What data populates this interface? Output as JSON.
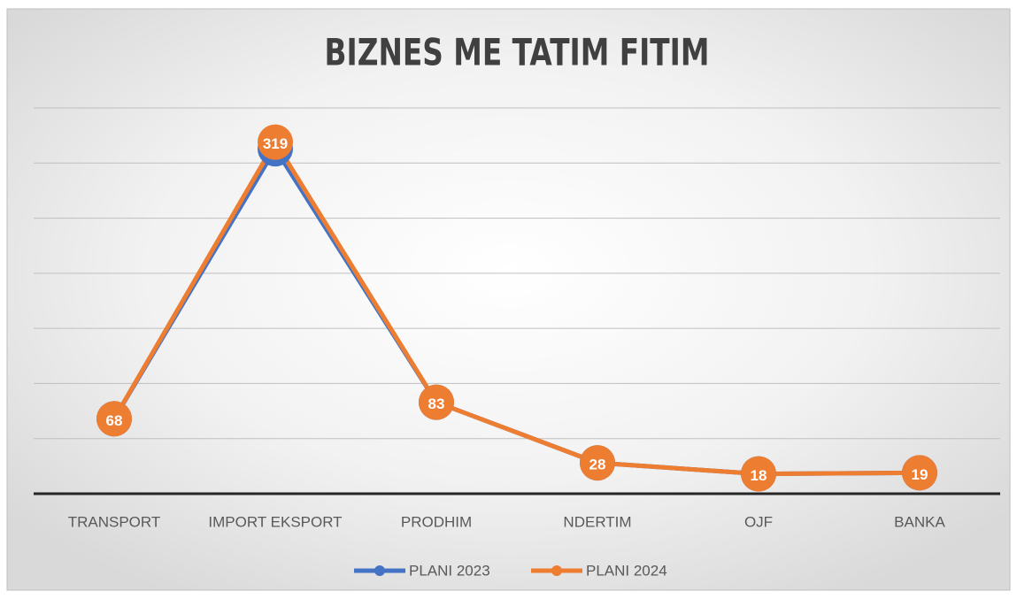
{
  "chart_data": {
    "type": "line",
    "title": "BIZNES ME TATIM FITIM",
    "categories": [
      "TRANSPORT",
      "IMPORT EKSPORT",
      "PRODHIM",
      "NDERTIM",
      "OJF",
      "BANKA"
    ],
    "series": [
      {
        "name": "PLANI 2023",
        "color": "#4472c4",
        "values": [
          68,
          313,
          83,
          28,
          18,
          19
        ]
      },
      {
        "name": "PLANI 2024",
        "color": "#ed7d31",
        "values": [
          68,
          319,
          83,
          28,
          18,
          19
        ]
      }
    ],
    "ylim": [
      0,
      350
    ],
    "yticks": [
      0,
      50,
      100,
      150,
      200,
      250,
      300,
      350
    ],
    "grid": true,
    "legend": "bottom"
  }
}
